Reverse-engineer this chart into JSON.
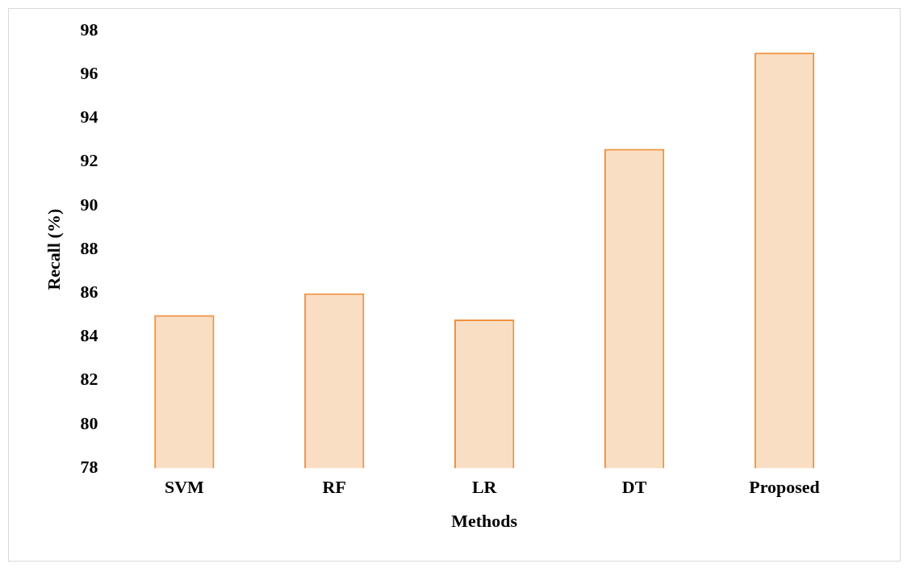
{
  "chart_data": {
    "type": "bar",
    "xlabel": "Methods",
    "ylabel": "Recall (%)",
    "categories": [
      "SVM",
      "RF",
      "LR",
      "DT",
      "Proposed"
    ],
    "series": [
      {
        "color": "#f0923c",
        "values": [
          85,
          86,
          84.8,
          92.6,
          97
        ]
      }
    ],
    "ylim": [
      78,
      98
    ],
    "yticks": [
      78,
      80,
      82,
      84,
      86,
      88,
      90,
      92,
      94,
      96,
      98
    ],
    "grid": false,
    "legend": false
  }
}
